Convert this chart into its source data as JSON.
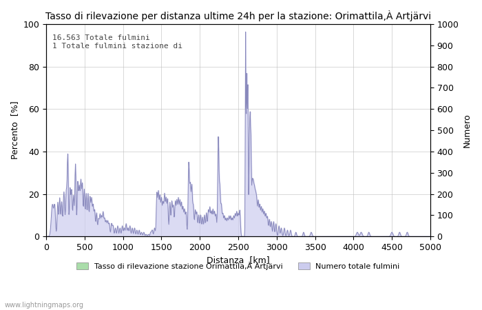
{
  "title": "Tasso di rilevazione per distanza ultime 24h per la stazione: Orimattila,À Artjärvi",
  "xlabel": "Distanza  [km]",
  "ylabel_left": "Percento  [%]",
  "ylabel_right": "Numero",
  "annotation_line1": "16.563 Totale fulmini",
  "annotation_line2": "1 Totale fulmini stazione di",
  "legend_label1": "Tasso di rilevazione stazione Orimattila,À Artjärvi",
  "legend_label2": "Numero totale fulmini",
  "watermark": "www.lightningmaps.org",
  "xlim": [
    0,
    5000
  ],
  "ylim_left": [
    0,
    100
  ],
  "ylim_right": [
    0,
    1000
  ],
  "xticks": [
    0,
    500,
    1000,
    1500,
    2000,
    2500,
    3000,
    3500,
    4000,
    4500,
    5000
  ],
  "yticks_left": [
    0,
    20,
    40,
    60,
    80,
    100
  ],
  "yticks_right": [
    0,
    100,
    200,
    300,
    400,
    500,
    600,
    700,
    800,
    900,
    1000
  ],
  "fill_color": "#ccccee",
  "line_color": "#8888bb",
  "fill_color_green": "#aaddaa",
  "background_color": "#ffffff",
  "grid_color": "#bbbbbb",
  "title_fontsize": 10,
  "label_fontsize": 9,
  "tick_fontsize": 9,
  "annotation_fontsize": 8,
  "legend_fontsize": 8,
  "watermark_fontsize": 7
}
